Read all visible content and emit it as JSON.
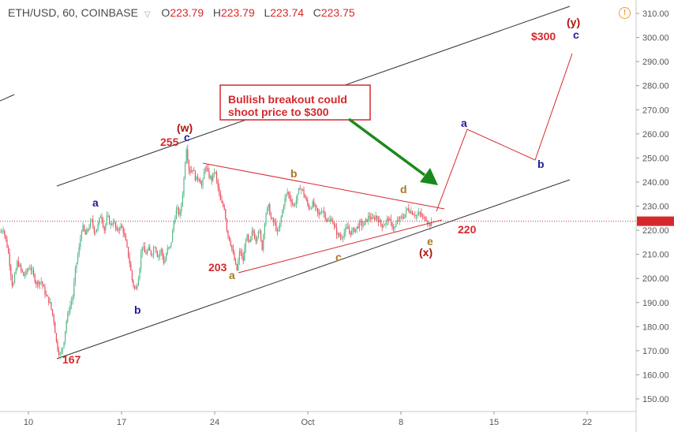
{
  "header": {
    "symbol": "ETH/USD, 60, COINBASE",
    "open_label": "O",
    "open": "223.79",
    "high_label": "H",
    "high": "223.79",
    "low_label": "L",
    "low": "223.74",
    "close_label": "C",
    "close": "223.75",
    "collapse_icon": "triangle-down-icon",
    "alert_icon": "exclamation-circle-icon"
  },
  "chart_data": {
    "type": "candlestick",
    "y_ticks": [
      "150.00",
      "160.00",
      "170.00",
      "180.00",
      "190.00",
      "200.00",
      "210.00",
      "220.00",
      "230.00",
      "240.00",
      "250.00",
      "260.00",
      "270.00",
      "280.00",
      "290.00",
      "300.00",
      "310.00"
    ],
    "ylim": [
      145,
      313
    ],
    "x_ticks": [
      "10",
      "17",
      "24",
      "Oct",
      "8",
      "15",
      "22"
    ],
    "current_price": 223.75,
    "colors": {
      "up": "#53b987",
      "down": "#eb4d5c",
      "annot_red": "#d6282b",
      "wave_blue": "#1d1d9a",
      "wave_orange": "#a77a1d",
      "arrow_green": "#1a8a1a"
    },
    "price_path": [
      [
        0,
        219
      ],
      [
        4,
        221
      ],
      [
        10,
        212
      ],
      [
        16,
        196
      ],
      [
        22,
        207
      ],
      [
        30,
        201
      ],
      [
        38,
        205
      ],
      [
        46,
        198
      ],
      [
        52,
        199
      ],
      [
        58,
        193
      ],
      [
        63,
        190
      ],
      [
        68,
        183
      ],
      [
        72,
        172
      ],
      [
        76,
        168
      ],
      [
        80,
        172
      ],
      [
        84,
        182
      ],
      [
        88,
        188
      ],
      [
        92,
        192
      ],
      [
        96,
        205
      ],
      [
        100,
        212
      ],
      [
        104,
        222
      ],
      [
        108,
        218
      ],
      [
        112,
        221
      ],
      [
        116,
        224
      ],
      [
        120,
        219
      ],
      [
        124,
        222
      ],
      [
        128,
        227
      ],
      [
        132,
        220
      ],
      [
        136,
        226
      ],
      [
        140,
        222
      ],
      [
        144,
        224
      ],
      [
        148,
        219
      ],
      [
        152,
        222
      ],
      [
        156,
        220
      ],
      [
        160,
        214
      ],
      [
        164,
        207
      ],
      [
        168,
        198
      ],
      [
        172,
        195
      ],
      [
        176,
        202
      ],
      [
        180,
        214
      ],
      [
        184,
        210
      ],
      [
        188,
        212
      ],
      [
        192,
        210
      ],
      [
        196,
        214
      ],
      [
        200,
        209
      ],
      [
        204,
        212
      ],
      [
        208,
        206
      ],
      [
        212,
        212
      ],
      [
        216,
        213
      ],
      [
        220,
        223
      ],
      [
        224,
        229
      ],
      [
        228,
        226
      ],
      [
        232,
        237
      ],
      [
        236,
        255
      ],
      [
        240,
        244
      ],
      [
        244,
        246
      ],
      [
        248,
        241
      ],
      [
        252,
        242
      ],
      [
        256,
        238
      ],
      [
        260,
        247
      ],
      [
        264,
        243
      ],
      [
        268,
        241
      ],
      [
        272,
        245
      ],
      [
        276,
        238
      ],
      [
        280,
        231
      ],
      [
        284,
        230
      ],
      [
        288,
        219
      ],
      [
        292,
        215
      ],
      [
        296,
        209
      ],
      [
        300,
        203
      ],
      [
        304,
        212
      ],
      [
        308,
        207
      ],
      [
        312,
        218
      ],
      [
        316,
        214
      ],
      [
        320,
        220
      ],
      [
        324,
        216
      ],
      [
        328,
        221
      ],
      [
        332,
        212
      ],
      [
        336,
        226
      ],
      [
        340,
        230
      ],
      [
        344,
        224
      ],
      [
        348,
        223
      ],
      [
        352,
        218
      ],
      [
        356,
        225
      ],
      [
        360,
        232
      ],
      [
        364,
        236
      ],
      [
        368,
        233
      ],
      [
        372,
        230
      ],
      [
        376,
        233
      ],
      [
        380,
        238
      ],
      [
        384,
        236
      ],
      [
        388,
        232
      ],
      [
        392,
        229
      ],
      [
        396,
        231
      ],
      [
        400,
        229
      ],
      [
        404,
        226
      ],
      [
        408,
        229
      ],
      [
        412,
        226
      ],
      [
        416,
        223
      ],
      [
        420,
        225
      ],
      [
        424,
        221
      ],
      [
        428,
        218
      ],
      [
        432,
        217
      ],
      [
        436,
        219
      ],
      [
        440,
        221
      ],
      [
        444,
        219
      ],
      [
        448,
        220
      ],
      [
        452,
        221
      ],
      [
        456,
        223
      ],
      [
        460,
        222
      ],
      [
        464,
        224
      ],
      [
        468,
        226
      ],
      [
        472,
        224
      ],
      [
        476,
        226
      ],
      [
        480,
        224
      ],
      [
        484,
        222
      ],
      [
        488,
        223
      ],
      [
        492,
        225
      ],
      [
        496,
        222
      ],
      [
        500,
        221
      ],
      [
        504,
        224
      ],
      [
        508,
        225
      ],
      [
        512,
        226
      ],
      [
        516,
        229
      ],
      [
        520,
        228
      ],
      [
        524,
        227
      ],
      [
        528,
        226
      ],
      [
        532,
        227
      ],
      [
        536,
        225
      ],
      [
        540,
        225
      ],
      [
        544,
        222
      ],
      [
        548,
        223.75
      ]
    ]
  },
  "waves": {
    "w": "(w)",
    "x": "(x)",
    "y": "(y)",
    "a": "a",
    "b": "b",
    "c": "c",
    "d": "d",
    "e": "e"
  },
  "prices": {
    "p255": "255",
    "p203": "203",
    "p167": "167",
    "p220": "220",
    "p300": "$300"
  },
  "annotation": {
    "text_line1": "Bullish breakout could",
    "text_line2": "shoot price to $300"
  }
}
